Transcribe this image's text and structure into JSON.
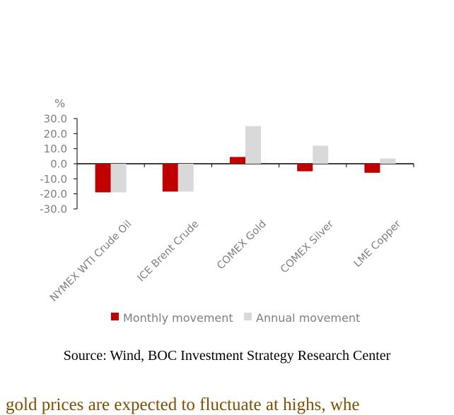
{
  "colors": {
    "monthly": "#c00000",
    "annual": "#d9d9d9",
    "axis": "#000000",
    "label": "#7f7f7f",
    "body_text": "#7f4f00"
  },
  "chart_data": {
    "type": "bar",
    "unit": "%",
    "categories": [
      "NYMEX WTI Crude Oil",
      "ICE Brent Crude",
      "COMEX Gold",
      "COMEX Silver",
      "LME Copper"
    ],
    "series": [
      {
        "name": "Monthly movement",
        "values": [
          -19.0,
          -18.5,
          4.5,
          -5.0,
          -6.0
        ]
      },
      {
        "name": "Annual movement",
        "values": [
          -19.0,
          -18.5,
          25.0,
          12.0,
          3.5
        ]
      }
    ],
    "y_ticks": [
      "30.0",
      "20.0",
      "10.0",
      "0.0",
      "-10.0",
      "-20.0",
      "-30.0"
    ],
    "ylim": [
      -30,
      30
    ],
    "grid": false,
    "legend_position": "bottom"
  },
  "source_text": "Source: Wind, BOC Investment Strategy Research Center",
  "body_text": "gold prices are expected to fluctuate at highs, whe"
}
